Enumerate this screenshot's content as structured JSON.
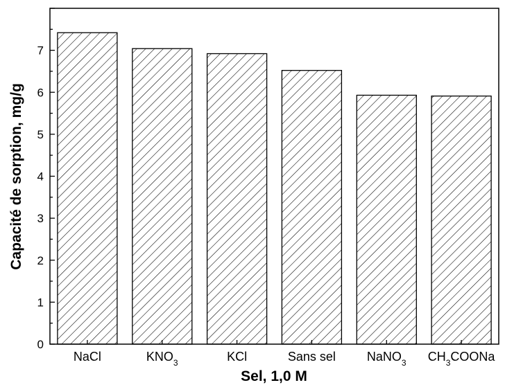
{
  "chart_data": {
    "type": "bar",
    "xlabel": "Sel, 1,0 M",
    "ylabel": "Capacité de sorption, mg/g",
    "ylim": [
      0,
      8
    ],
    "yticks": [
      0,
      1,
      2,
      3,
      4,
      5,
      6,
      7
    ],
    "grid": false,
    "bar_fill": "diagonal-hatch",
    "colors": {
      "bar_stroke": "#000000",
      "hatch": "#000000",
      "background": "#ffffff"
    },
    "categories": [
      {
        "label": "NaCl",
        "parts": [
          {
            "t": "NaCl",
            "sub": false
          }
        ]
      },
      {
        "label": "KNO3",
        "parts": [
          {
            "t": "KNO",
            "sub": false
          },
          {
            "t": "3",
            "sub": true
          }
        ]
      },
      {
        "label": "KCl",
        "parts": [
          {
            "t": "KCl",
            "sub": false
          }
        ]
      },
      {
        "label": "Sans sel",
        "parts": [
          {
            "t": "Sans sel",
            "sub": false
          }
        ]
      },
      {
        "label": "NaNO3",
        "parts": [
          {
            "t": "NaNO",
            "sub": false
          },
          {
            "t": "3",
            "sub": true
          }
        ]
      },
      {
        "label": "CH3COONa",
        "parts": [
          {
            "t": "CH",
            "sub": false
          },
          {
            "t": "3",
            "sub": true
          },
          {
            "t": "COONa",
            "sub": false
          }
        ]
      }
    ],
    "values": [
      7.42,
      7.04,
      6.92,
      6.52,
      5.93,
      5.91
    ]
  }
}
